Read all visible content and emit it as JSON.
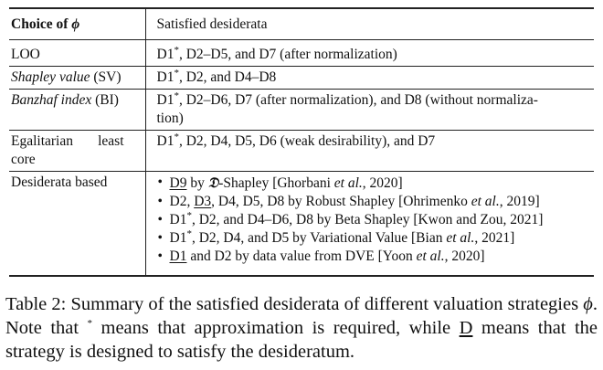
{
  "header": {
    "col1": "Choice of ",
    "col1_symbol": "ϕ",
    "col2": "Satisfied desiderata"
  },
  "rows": [
    {
      "left": "LOO",
      "left_style": "normal",
      "right_pre": "D1",
      "right_sup": "*",
      "right_post": ", D2–D5, and D7 (after normalization)"
    },
    {
      "left": "Shapley value",
      "left_suffix": " (SV)",
      "left_style": "italic",
      "right_pre": "D1",
      "right_sup": "*",
      "right_post": ", D2, and D4–D8"
    },
    {
      "left": "Banzhaf index",
      "left_suffix": " (BI)",
      "left_style": "italic",
      "right_pre": "D1",
      "right_sup": "*",
      "right_post": ", D2–D6, D7 (after normalization), and D8 (without normaliza-",
      "right_line2": "tion)"
    },
    {
      "left_line1": "Egalitarian       least",
      "left_line2": "core",
      "right_pre": "D1",
      "right_sup": "*",
      "right_post": ", D2, D4, D5, D6 (weak desirability), and D7"
    }
  ],
  "desiderata_row": {
    "left": "Desiderata based",
    "items": [
      {
        "u": "D9",
        "mid1": " by ",
        "frak": "𝔇",
        "mid2": "-Shapley [Ghorbani ",
        "etal": "et al.",
        "end": ", 2020]"
      },
      {
        "pre": "D2, ",
        "u": "D3",
        "mid1": ", D4, D5, D8 by Robust Shapley [Ohrimenko ",
        "etal": "et al.",
        "end": ", 2019]"
      },
      {
        "pre": "D1",
        "sup": "*",
        "mid1": ", D2, and D4–D6, D8 by Beta Shapley [Kwon and Zou, 2021]"
      },
      {
        "pre": "D1",
        "sup": "*",
        "mid1": ", D2, D4, and D5 by Variational Value [Bian ",
        "etal": "et al.",
        "end": ", 2021]"
      },
      {
        "u": "D1",
        "mid1": " and D2 by data value from DVE [Yoon ",
        "etal": "et al.",
        "end": ", 2020]"
      }
    ]
  },
  "caption": {
    "label": "Table 2:",
    "text1": " Summary of the satisfied desiderata of different valuation strategies ",
    "phi": "ϕ",
    "text2": ". Note that ",
    "star": "*",
    "text3": " means that approximation is required, while ",
    "u": "D",
    "text4": " means that the strategy is designed to satisfy the desideratum."
  }
}
